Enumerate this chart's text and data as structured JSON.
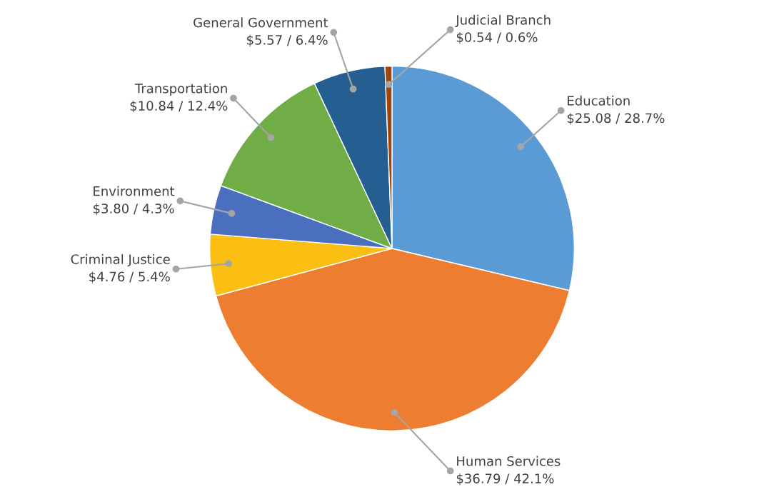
{
  "chart_data": {
    "type": "pie",
    "categories": [
      "Education",
      "Human Services",
      "Criminal Justice",
      "Environment",
      "Transportation",
      "General Government",
      "Judicial Branch"
    ],
    "values": [
      25.08,
      36.79,
      4.76,
      3.8,
      10.84,
      5.57,
      0.54
    ],
    "value_labels": [
      "$25.08 / 28.7%",
      "$36.79 / 42.1%",
      "$4.76 / 5.4%",
      "$3.80 / 4.3%",
      "$10.84 / 12.4%",
      "$5.57 / 6.4%",
      "$0.54 / 0.6%"
    ],
    "colors": [
      "#5b9bd5",
      "#ed7d31",
      "#fbbf14",
      "#4a6fbf",
      "#70ad47",
      "#255e91",
      "#9e480e"
    ],
    "legend": false
  }
}
